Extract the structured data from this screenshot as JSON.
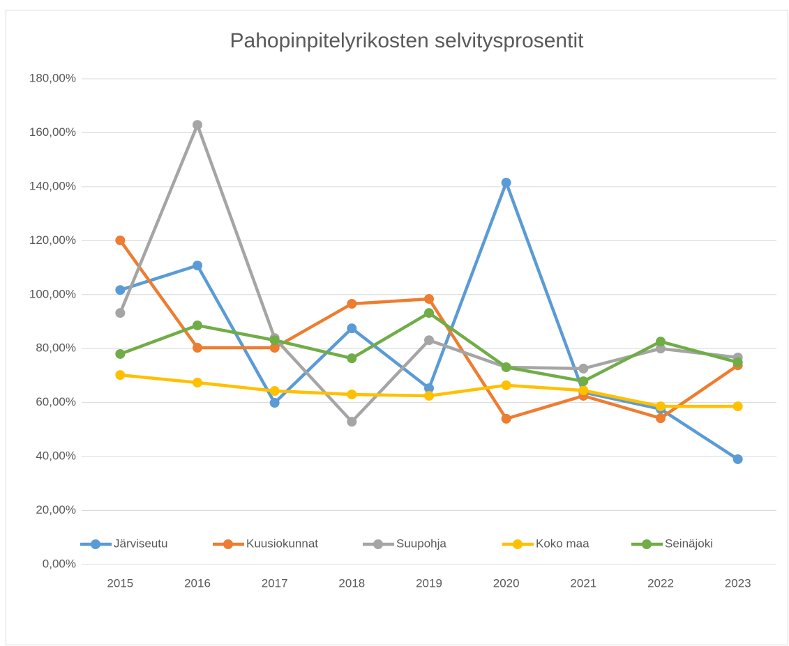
{
  "chart_data": {
    "type": "line",
    "title": "Pahopinpitelyrikosten selvitysprosentit",
    "categories": [
      "2015",
      "2016",
      "2017",
      "2018",
      "2019",
      "2020",
      "2021",
      "2022",
      "2023"
    ],
    "series": [
      {
        "name": "Järviseutu",
        "color": "#5b9bd5",
        "values": [
          101.7,
          110.8,
          59.9,
          87.5,
          65.3,
          141.5,
          63.8,
          57.6,
          39.0
        ]
      },
      {
        "name": "Kuusiokunnat",
        "color": "#ed7d31",
        "values": [
          120.1,
          80.3,
          80.3,
          96.6,
          98.4,
          54.0,
          62.5,
          54.2,
          73.8
        ]
      },
      {
        "name": "Suupohja",
        "color": "#a5a5a5",
        "values": [
          93.2,
          162.9,
          83.9,
          52.9,
          83.1,
          73.1,
          72.6,
          80.0,
          76.7
        ]
      },
      {
        "name": "Koko maa",
        "color": "#ffc000",
        "values": [
          70.2,
          67.4,
          64.3,
          63.0,
          62.5,
          66.4,
          64.5,
          58.6,
          58.6
        ]
      },
      {
        "name": "Seinäjoki",
        "color": "#70ad47",
        "values": [
          78.0,
          88.6,
          83.1,
          76.4,
          93.2,
          73.1,
          67.9,
          82.6,
          74.9
        ]
      }
    ],
    "ylim": [
      0,
      180
    ],
    "yticks": [
      {
        "value": 0,
        "label": "0,00%"
      },
      {
        "value": 20,
        "label": "20,00%"
      },
      {
        "value": 40,
        "label": "40,00%"
      },
      {
        "value": 60,
        "label": "60,00%"
      },
      {
        "value": 80,
        "label": "80,00%"
      },
      {
        "value": 100,
        "label": "100,00%"
      },
      {
        "value": 120,
        "label": "120,00%"
      },
      {
        "value": 140,
        "label": "140,00%"
      },
      {
        "value": 160,
        "label": "160,00%"
      },
      {
        "value": 180,
        "label": "180,00%"
      }
    ],
    "grid": true,
    "legend": "bottom"
  }
}
